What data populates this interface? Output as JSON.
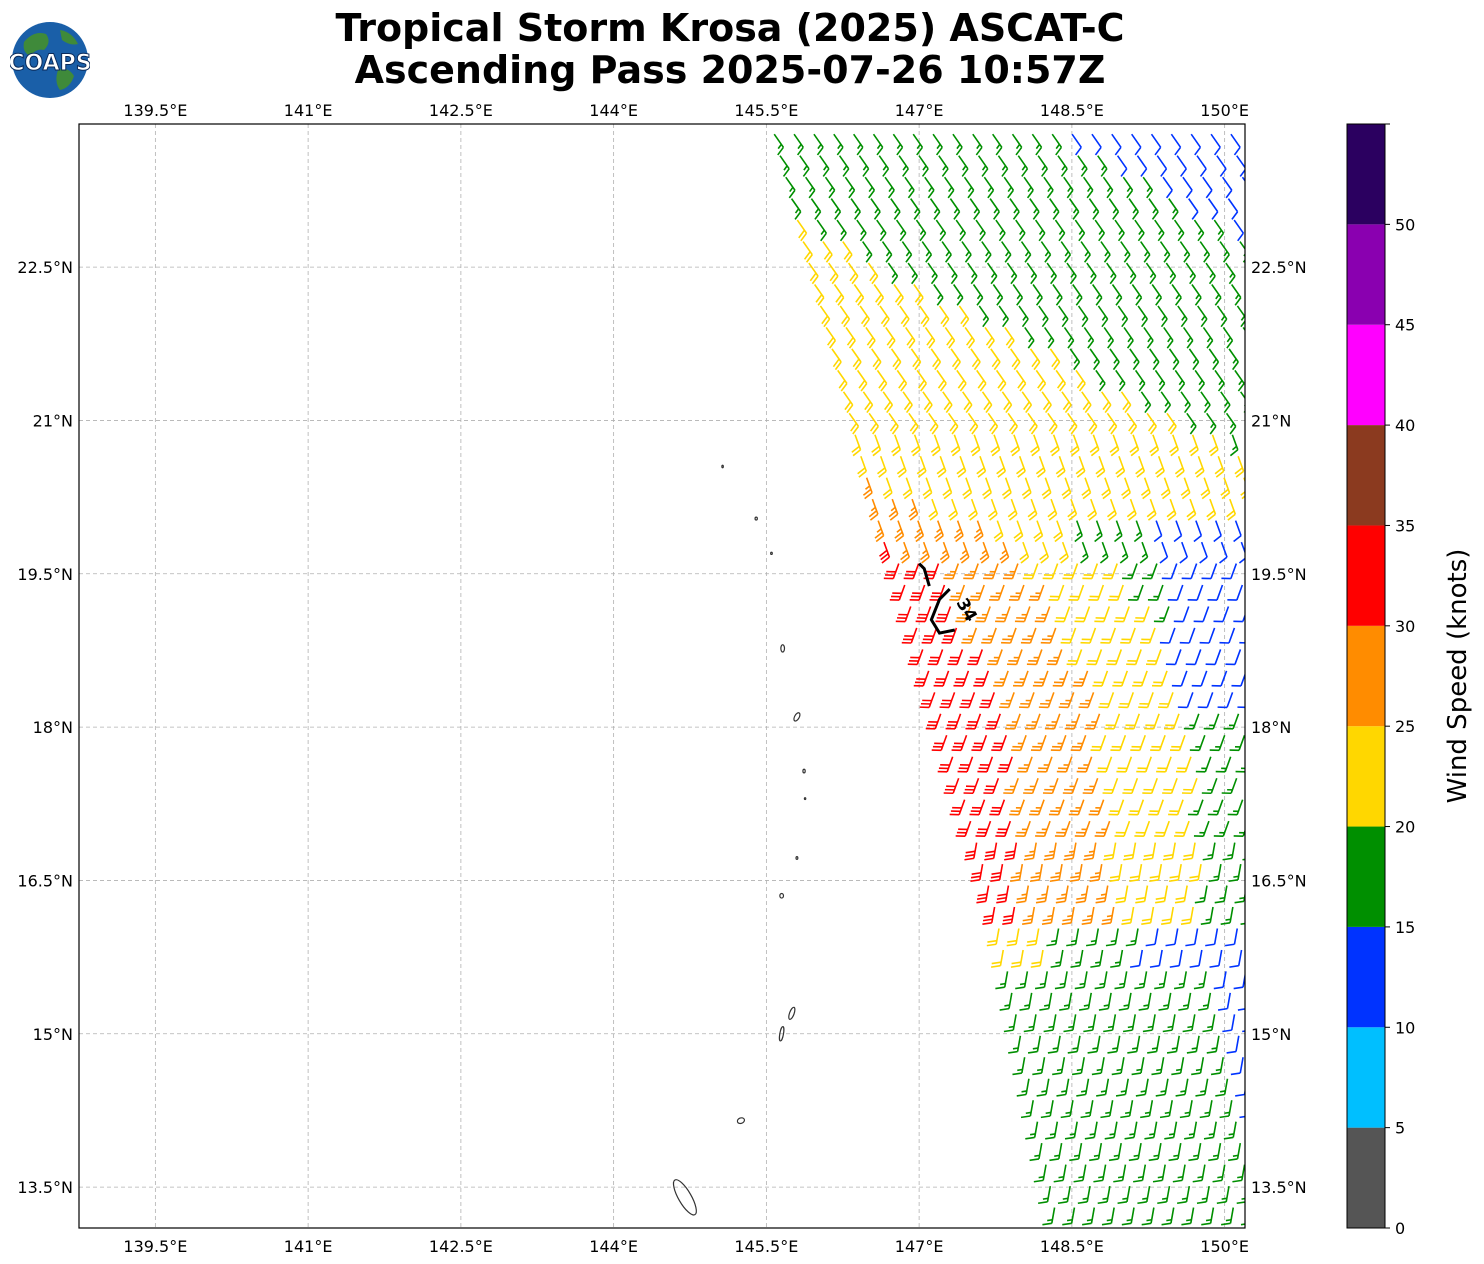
{
  "title": {
    "line1": "Tropical Storm Krosa (2025) ASCAT-C",
    "line2": "Ascending Pass 2025-07-26 10:57Z"
  },
  "logo": {
    "text": "COAPS",
    "globe_color": "#1a5fa8",
    "land_color": "#3f8a3a"
  },
  "map": {
    "lon_range": [
      138.75,
      150.2
    ],
    "lat_range": [
      13.1,
      23.9
    ],
    "lon_ticks": [
      "139.5°E",
      "141°E",
      "142.5°E",
      "144°E",
      "145.5°E",
      "147°E",
      "148.5°E",
      "150°E"
    ],
    "lon_tick_values": [
      139.5,
      141,
      142.5,
      144,
      145.5,
      147,
      148.5,
      150
    ],
    "lat_ticks": [
      "22.5°N",
      "21°N",
      "19.5°N",
      "18°N",
      "16.5°N",
      "15°N",
      "13.5°N"
    ],
    "lat_tick_values": [
      22.5,
      21,
      19.5,
      18,
      16.5,
      15,
      13.5
    ],
    "contour_label": "34"
  },
  "colorbar": {
    "title": "Wind Speed (knots)",
    "bounds": [
      0,
      5,
      10,
      15,
      20,
      25,
      30,
      35,
      40,
      45,
      50,
      55
    ],
    "tick_labels": [
      "0",
      "5",
      "10",
      "15",
      "20",
      "25",
      "30",
      "35",
      "40",
      "45",
      "50"
    ],
    "colors": [
      "#555555",
      "#00bfff",
      "#0033ff",
      "#008f00",
      "#ffd700",
      "#ff8c00",
      "#ff0000",
      "#8b3a1f",
      "#ff00ff",
      "#8a00b0",
      "#2b0060"
    ]
  },
  "colors": {
    "island_outline": "#333333",
    "grid": "#b0b0b0",
    "contour": "#000000"
  }
}
